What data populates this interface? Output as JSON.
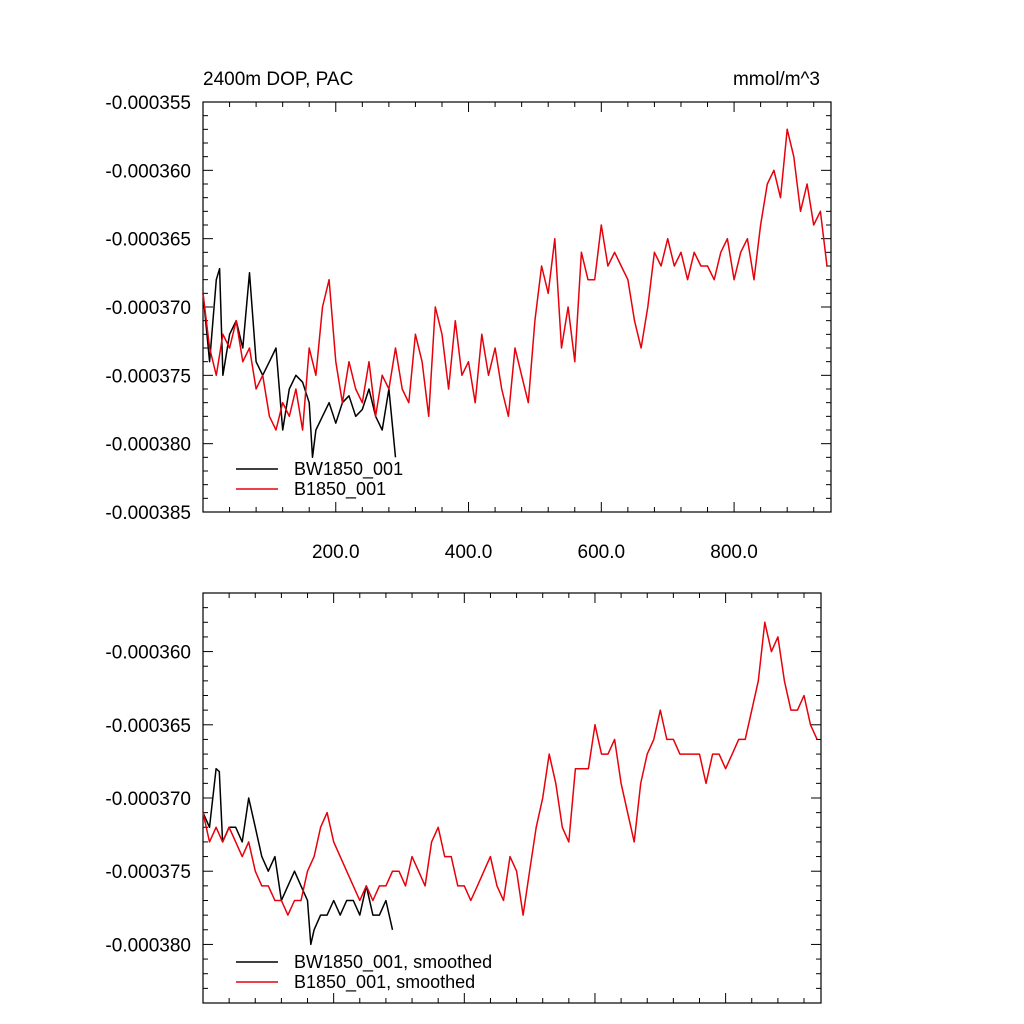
{
  "chart_data": [
    {
      "type": "line",
      "title_left": "2400m DOP, PAC",
      "title_right": "mmol/m^3",
      "xlim": [
        0,
        946
      ],
      "ylim": [
        -0.000385,
        -0.000355
      ],
      "x_ticks": [
        200,
        400,
        600,
        800
      ],
      "x_tick_labels": [
        "200.0",
        "400.0",
        "600.0",
        "800.0"
      ],
      "y_ticks": [
        -0.000355,
        -0.00036,
        -0.000365,
        -0.00037,
        -0.000375,
        -0.00038,
        -0.000385
      ],
      "y_tick_labels": [
        "-0.000355",
        "-0.000360",
        "-0.000365",
        "-0.000370",
        "-0.000375",
        "-0.000380",
        "-0.000385"
      ],
      "legend_position": "bottom-left",
      "series": [
        {
          "name": "BW1850_001",
          "color": "#000000",
          "x": [
            0,
            10,
            20,
            25,
            30,
            40,
            50,
            60,
            70,
            80,
            90,
            100,
            110,
            120,
            130,
            140,
            150,
            160,
            165,
            170,
            180,
            190,
            200,
            210,
            220,
            230,
            240,
            250,
            260,
            270,
            280,
            290
          ],
          "y": [
            -0.000369,
            -0.000374,
            -0.000368,
            -0.0003672,
            -0.000375,
            -0.000372,
            -0.000371,
            -0.000373,
            -0.0003675,
            -0.000374,
            -0.000375,
            -0.000374,
            -0.000373,
            -0.000379,
            -0.000376,
            -0.000375,
            -0.0003755,
            -0.000377,
            -0.000381,
            -0.000379,
            -0.000378,
            -0.000377,
            -0.0003785,
            -0.000377,
            -0.0003765,
            -0.000378,
            -0.0003775,
            -0.000376,
            -0.000378,
            -0.000379,
            -0.000376,
            -0.000381
          ]
        },
        {
          "name": "B1850_001",
          "color": "#e8000b",
          "x": [
            0,
            10,
            20,
            30,
            40,
            50,
            60,
            70,
            80,
            90,
            100,
            110,
            120,
            130,
            140,
            150,
            160,
            170,
            180,
            190,
            200,
            210,
            220,
            230,
            240,
            250,
            260,
            270,
            280,
            290,
            300,
            310,
            320,
            330,
            340,
            350,
            360,
            370,
            380,
            390,
            400,
            410,
            420,
            430,
            440,
            450,
            460,
            470,
            480,
            490,
            500,
            510,
            520,
            530,
            540,
            550,
            560,
            570,
            580,
            590,
            600,
            610,
            620,
            630,
            640,
            650,
            660,
            670,
            680,
            690,
            700,
            710,
            720,
            730,
            740,
            750,
            760,
            770,
            780,
            790,
            800,
            810,
            820,
            830,
            840,
            850,
            860,
            870,
            880,
            890,
            900,
            910,
            920,
            930,
            940
          ],
          "y": [
            -0.000369,
            -0.000373,
            -0.000375,
            -0.000372,
            -0.000373,
            -0.000371,
            -0.000374,
            -0.000373,
            -0.000376,
            -0.000375,
            -0.000378,
            -0.000379,
            -0.000377,
            -0.000378,
            -0.000376,
            -0.000379,
            -0.000373,
            -0.000375,
            -0.00037,
            -0.000368,
            -0.000374,
            -0.000377,
            -0.000374,
            -0.000376,
            -0.000377,
            -0.000374,
            -0.000378,
            -0.000375,
            -0.000376,
            -0.000373,
            -0.000376,
            -0.000377,
            -0.000372,
            -0.000374,
            -0.000378,
            -0.00037,
            -0.000372,
            -0.000376,
            -0.000371,
            -0.000375,
            -0.000374,
            -0.000377,
            -0.000372,
            -0.000375,
            -0.000373,
            -0.000376,
            -0.000378,
            -0.000373,
            -0.000375,
            -0.000377,
            -0.000371,
            -0.000367,
            -0.000369,
            -0.000365,
            -0.000373,
            -0.00037,
            -0.000374,
            -0.000366,
            -0.000368,
            -0.000368,
            -0.000364,
            -0.000367,
            -0.000366,
            -0.000367,
            -0.000368,
            -0.000371,
            -0.000373,
            -0.00037,
            -0.000366,
            -0.000367,
            -0.000365,
            -0.000367,
            -0.000366,
            -0.000368,
            -0.000366,
            -0.000367,
            -0.000367,
            -0.000368,
            -0.000366,
            -0.000365,
            -0.000368,
            -0.000366,
            -0.000365,
            -0.000368,
            -0.000364,
            -0.000361,
            -0.00036,
            -0.000362,
            -0.000357,
            -0.000359,
            -0.000363,
            -0.000361,
            -0.000364,
            -0.000363,
            -0.000367
          ]
        }
      ]
    },
    {
      "type": "line",
      "xlim": [
        0,
        946
      ],
      "ylim": [
        -0.000384,
        -0.000356
      ],
      "x_ticks": [
        200,
        400,
        600,
        800
      ],
      "y_ticks": [
        -0.00036,
        -0.000365,
        -0.00037,
        -0.000375,
        -0.00038
      ],
      "y_tick_labels": [
        "-0.000360",
        "-0.000365",
        "-0.000370",
        "-0.000375",
        "-0.000380"
      ],
      "legend_position": "bottom-left",
      "series": [
        {
          "name": "BW1850_001, smoothed",
          "color": "#000000",
          "x": [
            0,
            10,
            20,
            25,
            30,
            40,
            50,
            60,
            70,
            80,
            90,
            100,
            110,
            120,
            130,
            140,
            150,
            160,
            165,
            170,
            180,
            190,
            200,
            210,
            220,
            230,
            240,
            250,
            260,
            270,
            280,
            290
          ],
          "y": [
            -0.000371,
            -0.000372,
            -0.000368,
            -0.0003682,
            -0.000373,
            -0.000372,
            -0.000372,
            -0.000373,
            -0.00037,
            -0.000372,
            -0.000374,
            -0.000375,
            -0.000374,
            -0.000377,
            -0.000376,
            -0.000375,
            -0.000376,
            -0.000377,
            -0.00038,
            -0.000379,
            -0.000378,
            -0.000378,
            -0.000377,
            -0.000378,
            -0.000377,
            -0.000377,
            -0.000378,
            -0.000376,
            -0.000378,
            -0.000378,
            -0.000377,
            -0.000379
          ]
        },
        {
          "name": "B1850_001, smoothed",
          "color": "#e8000b",
          "x": [
            0,
            10,
            20,
            30,
            40,
            50,
            60,
            70,
            80,
            90,
            100,
            110,
            120,
            130,
            140,
            150,
            160,
            170,
            180,
            190,
            200,
            210,
            220,
            230,
            240,
            250,
            260,
            270,
            280,
            290,
            300,
            310,
            320,
            330,
            340,
            350,
            360,
            370,
            380,
            390,
            400,
            410,
            420,
            430,
            440,
            450,
            460,
            470,
            480,
            490,
            500,
            510,
            520,
            530,
            540,
            550,
            560,
            570,
            580,
            590,
            600,
            610,
            620,
            630,
            640,
            650,
            660,
            670,
            680,
            690,
            700,
            710,
            720,
            730,
            740,
            750,
            760,
            770,
            780,
            790,
            800,
            810,
            820,
            830,
            840,
            850,
            860,
            870,
            880,
            890,
            900,
            910,
            920,
            930,
            940
          ],
          "y": [
            -0.000371,
            -0.000373,
            -0.000372,
            -0.000373,
            -0.000372,
            -0.000373,
            -0.000374,
            -0.000373,
            -0.000375,
            -0.000376,
            -0.000376,
            -0.000377,
            -0.000377,
            -0.000378,
            -0.000377,
            -0.000377,
            -0.000375,
            -0.000374,
            -0.000372,
            -0.000371,
            -0.000373,
            -0.000374,
            -0.000375,
            -0.000376,
            -0.000377,
            -0.000376,
            -0.000377,
            -0.000376,
            -0.000376,
            -0.000375,
            -0.000375,
            -0.000376,
            -0.000374,
            -0.000375,
            -0.000376,
            -0.000373,
            -0.000372,
            -0.000374,
            -0.000374,
            -0.000376,
            -0.000376,
            -0.000377,
            -0.000376,
            -0.000375,
            -0.000374,
            -0.000376,
            -0.000377,
            -0.000374,
            -0.000375,
            -0.000378,
            -0.000375,
            -0.000372,
            -0.00037,
            -0.000367,
            -0.000369,
            -0.000372,
            -0.000373,
            -0.000368,
            -0.000368,
            -0.000368,
            -0.000365,
            -0.000367,
            -0.000367,
            -0.000366,
            -0.000369,
            -0.000371,
            -0.000373,
            -0.000369,
            -0.000367,
            -0.000366,
            -0.000364,
            -0.000366,
            -0.000366,
            -0.000367,
            -0.000367,
            -0.000367,
            -0.000367,
            -0.000369,
            -0.000367,
            -0.000367,
            -0.000368,
            -0.000367,
            -0.000366,
            -0.000366,
            -0.000364,
            -0.000362,
            -0.000358,
            -0.00036,
            -0.000359,
            -0.000362,
            -0.000364,
            -0.000364,
            -0.000363,
            -0.000365,
            -0.000366
          ]
        }
      ]
    }
  ]
}
